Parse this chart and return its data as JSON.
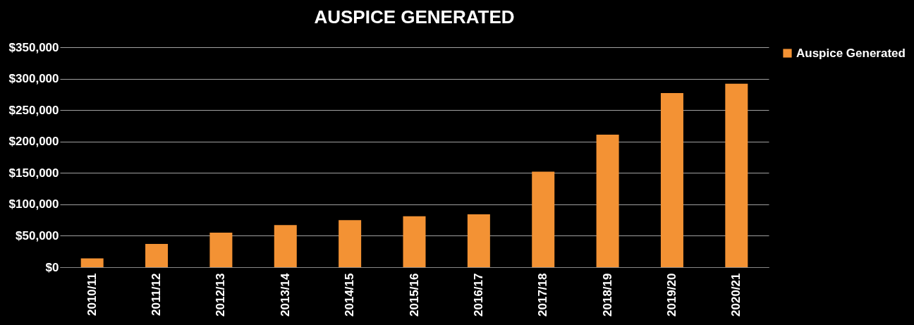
{
  "chart_data": {
    "type": "bar",
    "title": "AUSPICE GENERATED",
    "categories": [
      "2010/11",
      "2011/12",
      "2012/13",
      "2013/14",
      "2014/15",
      "2015/16",
      "2016/17",
      "2017/18",
      "2018/19",
      "2019/20",
      "2020/21"
    ],
    "series": [
      {
        "name": "Auspice Generated",
        "color": "#f39234",
        "values": [
          14000,
          37000,
          55000,
          67000,
          75000,
          81000,
          84000,
          152000,
          211000,
          277000,
          292000
        ]
      }
    ],
    "ylim": [
      0,
      350000
    ],
    "yticks": [
      {
        "value": 0,
        "label": "$0"
      },
      {
        "value": 50000,
        "label": "$50,000"
      },
      {
        "value": 100000,
        "label": "$100,000"
      },
      {
        "value": 150000,
        "label": "$150,000"
      },
      {
        "value": 200000,
        "label": "$200,000"
      },
      {
        "value": 250000,
        "label": "$250,000"
      },
      {
        "value": 300000,
        "label": "$300,000"
      },
      {
        "value": 350000,
        "label": "$350,000"
      }
    ],
    "grid": "y",
    "legend": "right"
  }
}
